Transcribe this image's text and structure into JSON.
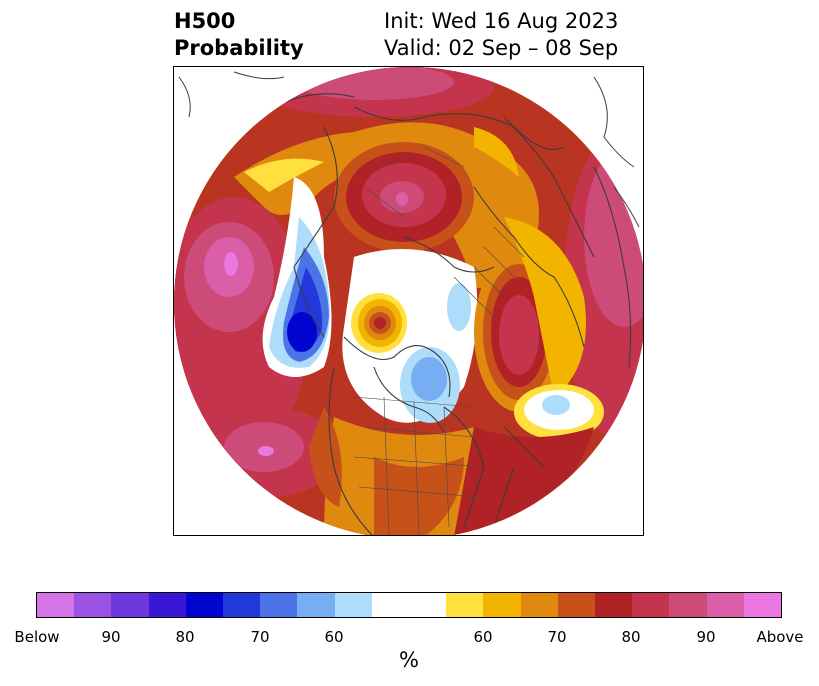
{
  "title": {
    "left_line1": "H500",
    "left_line2": "Probability",
    "right_line1": "Init: Wed 16 Aug 2023",
    "right_line2": "Valid: 02 Sep – 08 Sep"
  },
  "map": {
    "projection": "north-polar-stereographic",
    "features": [
      "coastlines",
      "country-borders",
      "us-state-borders"
    ]
  },
  "colorbar": {
    "label": "%",
    "colors": [
      "#d474e8",
      "#9a53e2",
      "#6f38dc",
      "#3a17d6",
      "#0006cf",
      "#2338db",
      "#4d74e6",
      "#76adf3",
      "#aedcfb",
      "#ffffff",
      "#ffffff",
      "#ffe03e",
      "#f3b400",
      "#e0890f",
      "#c6521a",
      "#b02226",
      "#c4354d",
      "#cc4b79",
      "#da5ea8",
      "#ea78e0"
    ],
    "ticks": [
      "Below",
      "90",
      "80",
      "70",
      "60",
      "60",
      "70",
      "80",
      "90",
      "Above"
    ]
  }
}
